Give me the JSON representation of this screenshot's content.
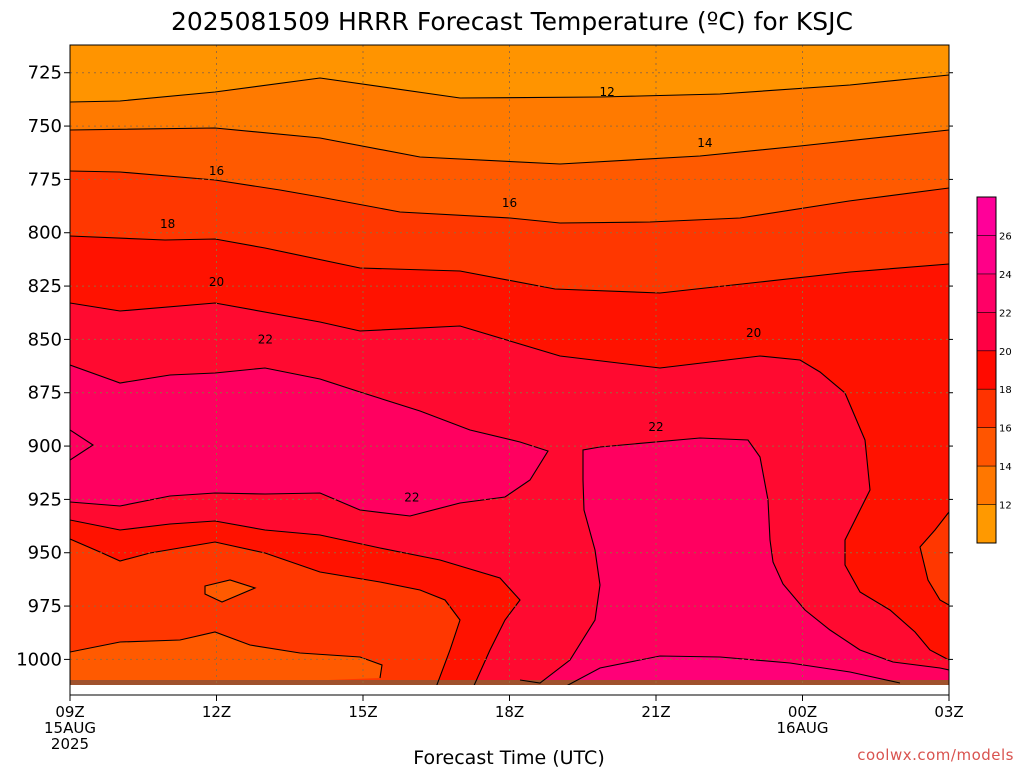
{
  "chart_data": {
    "type": "contour",
    "title": "2025081509 HRRR Forecast Temperature (ºC) for KSJC",
    "xlabel": "Forecast Time (UTC)",
    "ylabel": "",
    "credit": "coolwx.com/models",
    "x_ticks": [
      {
        "hour": 0,
        "lines": [
          "09Z",
          "15AUG",
          "2025"
        ]
      },
      {
        "hour": 3,
        "lines": [
          "12Z"
        ]
      },
      {
        "hour": 6,
        "lines": [
          "15Z"
        ]
      },
      {
        "hour": 9,
        "lines": [
          "18Z"
        ]
      },
      {
        "hour": 12,
        "lines": [
          "21Z"
        ]
      },
      {
        "hour": 15,
        "lines": [
          "00Z",
          "16AUG"
        ]
      },
      {
        "hour": 18,
        "lines": [
          "03Z"
        ]
      }
    ],
    "y_ticks": [
      "725",
      "750",
      "775",
      "800",
      "825",
      "850",
      "875",
      "900",
      "925",
      "950",
      "975",
      "1000"
    ],
    "y_range_hpa": [
      712,
      1012
    ],
    "x_range_hours": [
      0,
      18
    ],
    "colorbar": {
      "labels": [
        "12",
        "14",
        "16",
        "18",
        "20",
        "22",
        "24",
        "26"
      ],
      "colors": [
        "#ff9900",
        "#ff7700",
        "#ff5500",
        "#ff3300",
        "#ff0a00",
        "#ff0044",
        "#ff0066",
        "#ff0088",
        "#ff0099"
      ]
    },
    "fill_colors": {
      "12": "#ff9400",
      "14": "#ff7a00",
      "16": "#ff5a00",
      "18": "#ff3700",
      "20": "#ff1200",
      "22": "#ff0050",
      "22b": "#ff0068",
      "ground": "#a0522d"
    },
    "contour_labels": [
      {
        "text": "12",
        "hour": 11.0,
        "hpa": 734
      },
      {
        "text": "14",
        "hour": 13.0,
        "hpa": 758
      },
      {
        "text": "16",
        "hour": 3.0,
        "hpa": 771
      },
      {
        "text": "16",
        "hour": 9.0,
        "hpa": 786
      },
      {
        "text": "18",
        "hour": 2.0,
        "hpa": 796
      },
      {
        "text": "20",
        "hour": 3.0,
        "hpa": 823
      },
      {
        "text": "20",
        "hour": 14.0,
        "hpa": 847
      },
      {
        "text": "22",
        "hour": 4.0,
        "hpa": 850
      },
      {
        "text": "22",
        "hour": 12.0,
        "hpa": 891
      },
      {
        "text": "22",
        "hour": 7.0,
        "hpa": 924
      }
    ]
  }
}
